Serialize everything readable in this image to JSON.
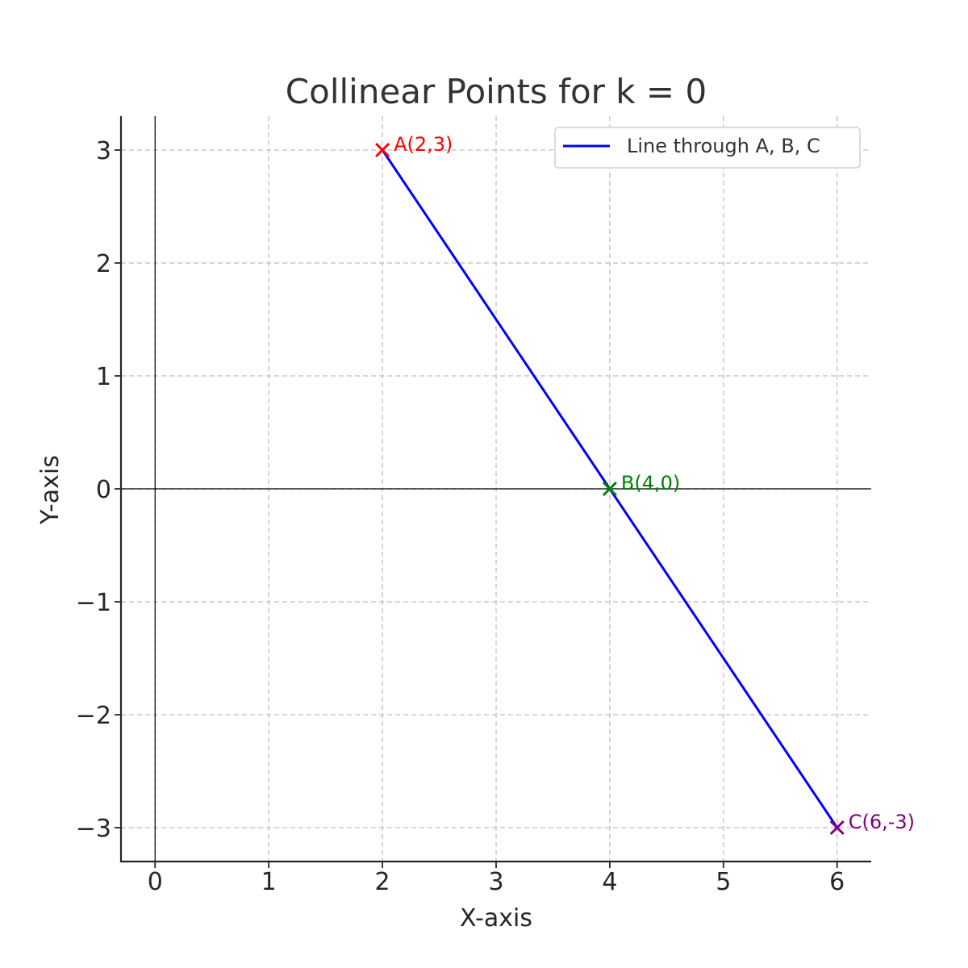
{
  "chart_data": {
    "type": "line",
    "title": "Collinear Points for k = 0",
    "xlabel": "X-axis",
    "ylabel": "Y-axis",
    "xlim": [
      -0.3,
      6.3
    ],
    "ylim": [
      -3.3,
      3.3
    ],
    "xticks": [
      0,
      1,
      2,
      3,
      4,
      5,
      6
    ],
    "yticks": [
      3,
      2,
      1,
      0,
      -1,
      -2,
      -3
    ],
    "xtick_labels": [
      "0",
      "1",
      "2",
      "3",
      "4",
      "5",
      "6"
    ],
    "ytick_labels": [
      "3",
      "2",
      "1",
      "0",
      "−1",
      "−2",
      "−3"
    ],
    "grid": true,
    "legend_position": "top-right",
    "series": [
      {
        "name": "Line through A, B, C",
        "color": "#0000ff",
        "x": [
          2,
          4,
          6
        ],
        "y": [
          3,
          0,
          -3
        ]
      }
    ],
    "points": [
      {
        "label": "A(2,3)",
        "x": 2,
        "y": 3,
        "color": "#ff0000",
        "marker": "x"
      },
      {
        "label": "B(4,0)",
        "x": 4,
        "y": 0,
        "color": "#008000",
        "marker": "x"
      },
      {
        "label": "C(6,-3)",
        "x": 6,
        "y": -3,
        "color": "#800080",
        "marker": "x"
      }
    ],
    "reference_lines": {
      "x": 0,
      "y": 0
    }
  }
}
